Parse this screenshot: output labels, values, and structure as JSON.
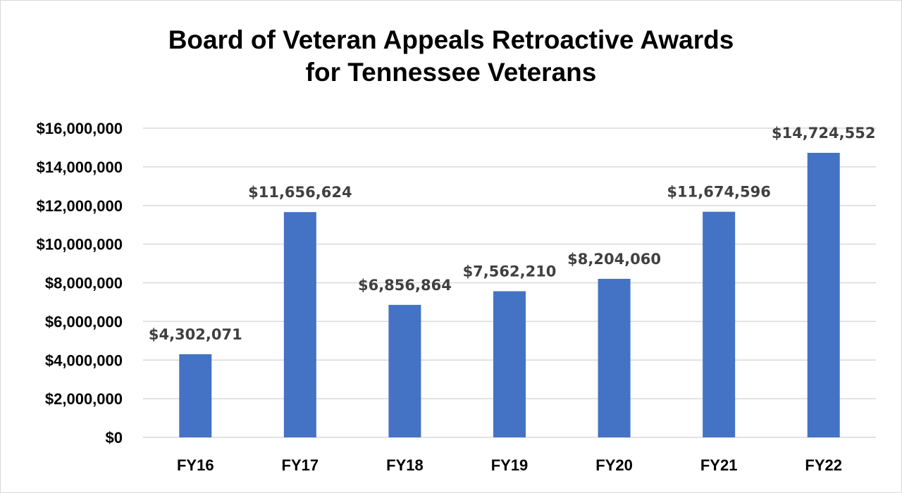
{
  "chart_data": {
    "type": "bar",
    "title_lines": [
      "Board of Veteran Appeals Retroactive Awards",
      "for Tennessee Veterans"
    ],
    "categories": [
      "FY16",
      "FY17",
      "FY18",
      "FY19",
      "FY20",
      "FY21",
      "FY22"
    ],
    "values": [
      4302071,
      11656624,
      6856864,
      7562210,
      8204060,
      11674596,
      14724552
    ],
    "data_labels": [
      "$4,302,071",
      "$11,656,624",
      "$6,856,864",
      "$7,562,210",
      "$8,204,060",
      "$11,674,596",
      "$14,724,552"
    ],
    "y_ticks": [
      0,
      2000000,
      4000000,
      6000000,
      8000000,
      10000000,
      12000000,
      14000000,
      16000000
    ],
    "y_tick_labels": [
      "$0",
      "$2,000,000",
      "$4,000,000",
      "$6,000,000",
      "$8,000,000",
      "$10,000,000",
      "$12,000,000",
      "$14,000,000",
      "$16,000,000"
    ],
    "ylim": [
      0,
      16000000
    ],
    "grid": true,
    "legend": "none",
    "bar_color": "#4472c4",
    "grid_color": "#d9d9d9"
  }
}
